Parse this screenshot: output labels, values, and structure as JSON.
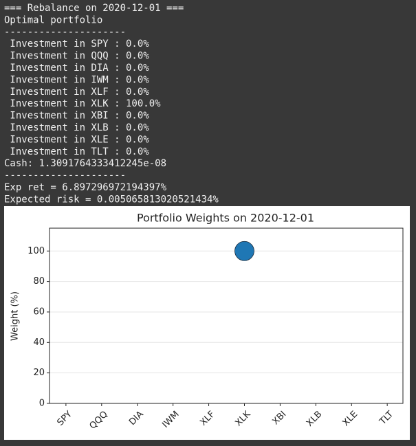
{
  "console": {
    "lines": [
      "=== Rebalance on 2020-12-01 ===",
      "Optimal portfolio",
      "---------------------",
      " Investment in SPY : 0.0%",
      " Investment in QQQ : 0.0%",
      " Investment in DIA : 0.0%",
      " Investment in IWM : 0.0%",
      " Investment in XLF : 0.0%",
      " Investment in XLK : 100.0%",
      " Investment in XBI : 0.0%",
      " Investment in XLB : 0.0%",
      " Investment in XLE : 0.0%",
      " Investment in TLT : 0.0%",
      "Cash: 1.3091764333412245e-08",
      "---------------------",
      "Exp ret = 6.897296972194397%",
      "Expected risk = 0.005065813020521434%"
    ]
  },
  "chart_data": {
    "type": "scatter",
    "title": "Portfolio Weights on 2020-12-01",
    "y_label": "Weight (%)",
    "categories": [
      "SPY",
      "QQQ",
      "DIA",
      "IWM",
      "XLF",
      "XLK",
      "XBI",
      "XLB",
      "XLE",
      "TLT"
    ],
    "values": [
      0,
      0,
      0,
      0,
      0,
      100,
      0,
      0,
      0,
      0
    ],
    "color": "#1f77b4",
    "ylim": [
      0,
      115
    ],
    "yticks": [
      0,
      20,
      40,
      60,
      80,
      100
    ],
    "grid": true
  }
}
